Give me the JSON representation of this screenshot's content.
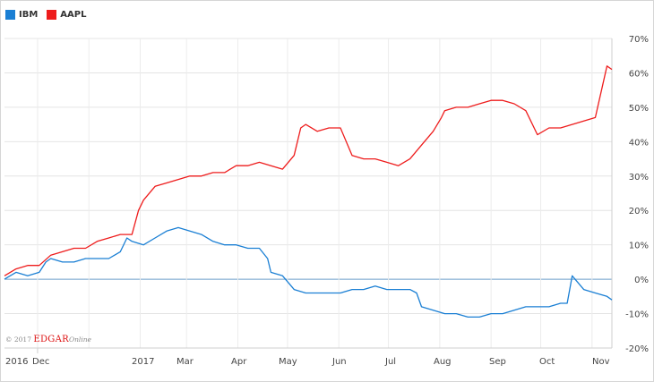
{
  "legend": [
    {
      "name": "IBM",
      "color": "#1a7fd4"
    },
    {
      "name": "AAPL",
      "color": "#ee1c1c"
    }
  ],
  "credit": {
    "year": "© 2017",
    "brand": "EDGAR",
    "suffix": "Online"
  },
  "chart_data": {
    "type": "line",
    "title": "",
    "xlabel": "",
    "ylabel": "",
    "ylim": [
      -20,
      70
    ],
    "y_ticks": [
      "-20%",
      "-10%",
      "0%",
      "10%",
      "20%",
      "30%",
      "40%",
      "50%",
      "60%",
      "70%"
    ],
    "x_ticks": [
      "2016",
      "Dec",
      "2017",
      "Mar",
      "Apr",
      "May",
      "Jun",
      "Jul",
      "Aug",
      "Sep",
      "Oct",
      "Nov"
    ],
    "x_range": [
      "2016-11-11",
      "2017-11-13"
    ],
    "grid": true,
    "legend_position": "top-left",
    "series": [
      {
        "name": "IBM",
        "color": "#1a7fd4",
        "x": [
          "2016-11-11",
          "2016-11-18",
          "2016-11-25",
          "2016-12-02",
          "2016-12-06",
          "2016-12-09",
          "2016-12-16",
          "2016-12-23",
          "2016-12-30",
          "2017-01-06",
          "2017-01-13",
          "2017-01-20",
          "2017-01-24",
          "2017-01-27",
          "2017-02-03",
          "2017-02-10",
          "2017-02-17",
          "2017-02-24",
          "2017-03-03",
          "2017-03-10",
          "2017-03-17",
          "2017-03-24",
          "2017-03-31",
          "2017-04-07",
          "2017-04-14",
          "2017-04-19",
          "2017-04-21",
          "2017-04-28",
          "2017-05-05",
          "2017-05-12",
          "2017-05-19",
          "2017-05-26",
          "2017-06-02",
          "2017-06-09",
          "2017-06-16",
          "2017-06-23",
          "2017-06-30",
          "2017-07-07",
          "2017-07-14",
          "2017-07-18",
          "2017-07-21",
          "2017-07-28",
          "2017-08-04",
          "2017-08-11",
          "2017-08-18",
          "2017-08-25",
          "2017-09-01",
          "2017-09-08",
          "2017-09-15",
          "2017-09-22",
          "2017-09-29",
          "2017-10-06",
          "2017-10-13",
          "2017-10-17",
          "2017-10-20",
          "2017-10-27",
          "2017-11-03",
          "2017-11-10",
          "2017-11-13"
        ],
        "values": [
          0,
          2,
          1,
          2,
          5,
          6,
          5,
          5,
          6,
          6,
          6,
          8,
          12,
          11,
          10,
          12,
          14,
          15,
          14,
          13,
          11,
          10,
          10,
          9,
          9,
          6,
          2,
          1,
          -3,
          -4,
          -4,
          -4,
          -4,
          -3,
          -3,
          -2,
          -3,
          -3,
          -3,
          -4,
          -8,
          -9,
          -10,
          -10,
          -11,
          -11,
          -10,
          -10,
          -9,
          -8,
          -8,
          -8,
          -7,
          -7,
          1,
          -3,
          -4,
          -5,
          -6
        ]
      },
      {
        "name": "AAPL",
        "color": "#ee1c1c",
        "x": [
          "2016-11-11",
          "2016-11-18",
          "2016-11-25",
          "2016-12-02",
          "2016-12-09",
          "2016-12-16",
          "2016-12-23",
          "2016-12-30",
          "2017-01-06",
          "2017-01-13",
          "2017-01-20",
          "2017-01-27",
          "2017-01-31",
          "2017-02-03",
          "2017-02-10",
          "2017-02-17",
          "2017-02-24",
          "2017-03-03",
          "2017-03-10",
          "2017-03-17",
          "2017-03-24",
          "2017-03-31",
          "2017-04-07",
          "2017-04-14",
          "2017-04-21",
          "2017-04-28",
          "2017-05-05",
          "2017-05-09",
          "2017-05-12",
          "2017-05-19",
          "2017-05-26",
          "2017-06-02",
          "2017-06-09",
          "2017-06-16",
          "2017-06-23",
          "2017-06-30",
          "2017-07-07",
          "2017-07-14",
          "2017-07-21",
          "2017-07-28",
          "2017-08-02",
          "2017-08-04",
          "2017-08-11",
          "2017-08-18",
          "2017-08-25",
          "2017-09-01",
          "2017-09-08",
          "2017-09-15",
          "2017-09-22",
          "2017-09-29",
          "2017-10-06",
          "2017-10-13",
          "2017-10-20",
          "2017-10-27",
          "2017-11-03",
          "2017-11-10",
          "2017-11-13"
        ],
        "values": [
          1,
          3,
          4,
          4,
          7,
          8,
          9,
          9,
          11,
          12,
          13,
          13,
          20,
          23,
          27,
          28,
          29,
          30,
          30,
          31,
          31,
          33,
          33,
          34,
          33,
          32,
          36,
          44,
          45,
          43,
          44,
          44,
          36,
          35,
          35,
          34,
          33,
          35,
          39,
          43,
          47,
          49,
          50,
          50,
          51,
          52,
          52,
          51,
          49,
          42,
          44,
          44,
          45,
          46,
          47,
          62,
          61
        ]
      }
    ]
  }
}
